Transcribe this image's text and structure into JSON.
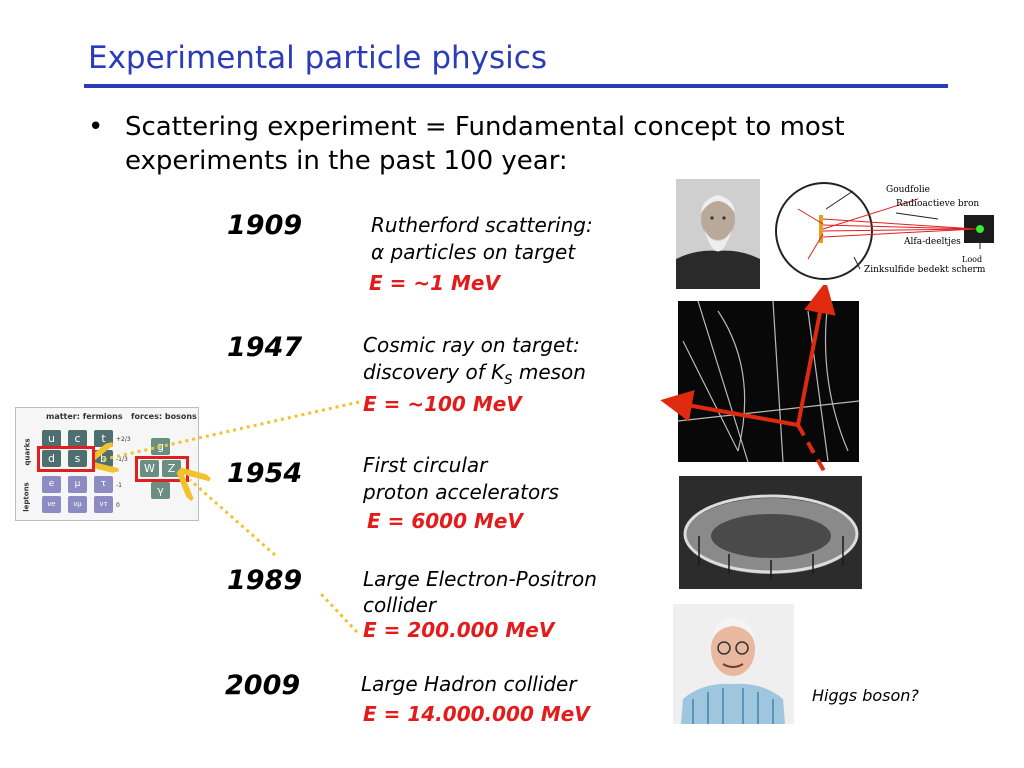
{
  "slide": {
    "title": "Experimental particle physics",
    "bullet_marker": "•",
    "bullet_text": "Scattering experiment = Fundamental concept to most experiments in the past 100 year:"
  },
  "timeline": [
    {
      "year": "1909",
      "line1": "Rutherford scattering:",
      "line2": "α particles on target",
      "energy": "E = ~1 MeV"
    },
    {
      "year": "1947",
      "line1": "Cosmic ray on target:",
      "line2": "discovery of K",
      "line2_sub": "S",
      "line2_tail": " meson",
      "energy": "E = ~100 MeV"
    },
    {
      "year": "1954",
      "line1": "First circular",
      "line2": "proton accelerators",
      "energy": "E = 6000 MeV"
    },
    {
      "year": "1989",
      "line1": "Large Electron-Positron",
      "line2": "collider",
      "energy": "E = 200.000 MeV"
    },
    {
      "year": "2009",
      "line1": "Large Hadron collider",
      "energy": "E = 14.000.000 MeV"
    }
  ],
  "rutherford_diagram": {
    "labels": [
      "Goudfolie",
      "Radioactieve bron",
      "Alfa-deeltjes",
      "Lood",
      "Zinksulfide bedekt scherm"
    ]
  },
  "higgs_caption": "Higgs boson?",
  "standard_model": {
    "header_fermions": "matter: fermions",
    "header_bosons": "forces: bosons",
    "side_quarks": "quarks",
    "side_leptons": "leptons",
    "quarks_row1": [
      "u",
      "c",
      "t"
    ],
    "quarks_row2": [
      "d",
      "s",
      "b"
    ],
    "leptons_row1": [
      "e",
      "μ",
      "τ"
    ],
    "leptons_row2": [
      "νe",
      "νμ",
      "ντ"
    ],
    "bosons": [
      "g",
      "W",
      "Z",
      "γ"
    ],
    "charges": [
      "+2/3",
      "-1/3",
      "-1",
      "0"
    ]
  },
  "colors": {
    "title_blue": "#2a3cb7",
    "energy_red": "#e31b1b",
    "arrow_red": "#e02a10",
    "dotted_yellow": "#f2c12e"
  }
}
